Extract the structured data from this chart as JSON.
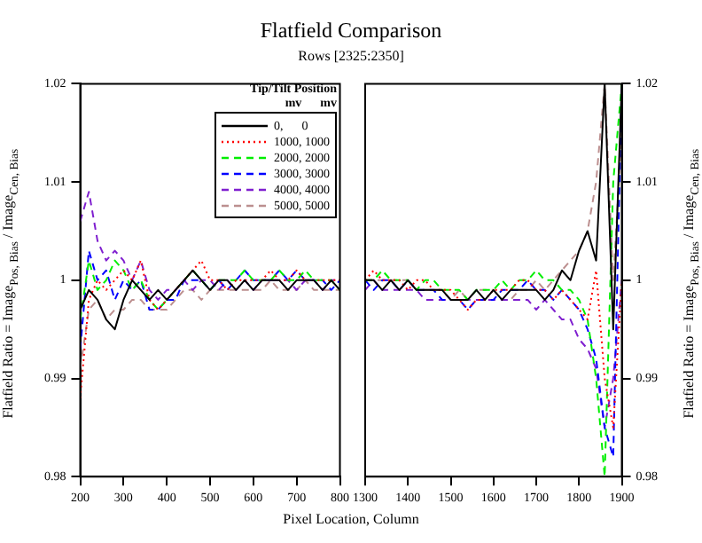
{
  "chart_data": [
    {
      "type": "line",
      "title": "Flatfield Comparison",
      "subtitle": "Rows [2325:2350]",
      "xlabel": "Pixel Location, Column",
      "ylabel": "Flatfield Ratio = Image$_{Pos, Bias}$ / Image$_{Cen, Bias}$",
      "legend": "top right",
      "legend_title": "Tip/Tilt Position\nmv      mv",
      "grid": false,
      "marker": "none",
      "x": [
        200,
        220,
        240,
        260,
        280,
        300,
        320,
        340,
        360,
        380,
        400,
        420,
        440,
        460,
        480,
        500,
        520,
        540,
        560,
        580,
        600,
        620,
        640,
        660,
        680,
        700,
        720,
        740,
        760,
        780,
        800
      ],
      "xlim": [
        200,
        800
      ],
      "xticks": [
        200,
        300,
        400,
        500,
        600,
        700,
        800
      ],
      "ylim": [
        0.98,
        1.02
      ],
      "yticks": [
        0.98,
        0.99,
        1,
        1.01,
        1.02
      ],
      "series": [
        {
          "name": "0,      0",
          "color": "#000000",
          "line_style": "solid",
          "values": [
            0.997,
            0.999,
            0.998,
            0.996,
            0.995,
            0.998,
            1.0,
            0.999,
            0.998,
            0.999,
            0.998,
            0.999,
            1.0,
            1.001,
            1.0,
            0.999,
            1.0,
            1.0,
            0.999,
            1.0,
            0.999,
            1.0,
            1.0,
            1.0,
            0.999,
            1.0,
            1.0,
            1.0,
            0.999,
            1.0,
            0.999
          ]
        },
        {
          "name": "1000, 1000",
          "color": "#ff0000",
          "line_style": "dotted",
          "values": [
            0.988,
            0.998,
            1.0,
            0.999,
            1.0,
            1.001,
            1.0,
            1.002,
            0.998,
            0.997,
            0.998,
            0.999,
            1.0,
            1.001,
            1.002,
            1.0,
            1.0,
            0.999,
            1.0,
            1.0,
            1.0,
            1.0,
            1.001,
            1.0,
            1.0,
            1.001,
            1.0,
            1.0,
            1.0,
            1.0,
            1.0
          ]
        },
        {
          "name": "2000, 2000",
          "color": "#00ee00",
          "line_style": "dashed",
          "values": [
            0.996,
            1.002,
            0.999,
            1.0,
            1.002,
            1.001,
            0.999,
            1.0,
            0.998,
            0.997,
            0.998,
            0.999,
            1.0,
            1.001,
            1.0,
            0.999,
            1.0,
            1.0,
            1.0,
            1.001,
            1.0,
            1.0,
            1.0,
            1.001,
            1.0,
            1.0,
            1.001,
            1.0,
            1.0,
            1.0,
            0.999
          ]
        },
        {
          "name": "3000, 3000",
          "color": "#0000ff",
          "line_style": "dashed",
          "values": [
            0.993,
            1.003,
            1.0,
            1.001,
            0.998,
            1.0,
            0.999,
            1.0,
            0.997,
            0.997,
            0.998,
            0.998,
            1.0,
            1.0,
            1.0,
            0.999,
            1.0,
            0.999,
            1.0,
            1.001,
            1.0,
            1.0,
            1.0,
            1.001,
            1.0,
            1.001,
            1.0,
            1.0,
            1.0,
            0.999,
            1.0
          ]
        },
        {
          "name": "4000, 4000",
          "color": "#7f1fcf",
          "line_style": "dashed",
          "values": [
            1.006,
            1.009,
            1.004,
            1.002,
            1.003,
            1.002,
            1.0,
            1.002,
            0.999,
            0.998,
            0.999,
            0.999,
            1.0,
            0.999,
            1.0,
            1.0,
            0.999,
            1.0,
            0.999,
            1.0,
            0.999,
            1.0,
            1.0,
            1.0,
            1.0,
            0.999,
            1.0,
            1.0,
            0.999,
            1.0,
            1.0
          ]
        },
        {
          "name": "5000, 5000",
          "color": "#bc8f8f",
          "line_style": "dashed",
          "values": [
            0.991,
            0.997,
            0.998,
            0.996,
            0.997,
            0.997,
            0.998,
            0.998,
            0.997,
            0.997,
            0.997,
            0.998,
            0.999,
            0.999,
            0.998,
            0.999,
            0.999,
            0.999,
            0.999,
            0.999,
            0.999,
            0.999,
            1.0,
            0.999,
            0.999,
            0.999,
            1.0,
            0.999,
            0.999,
            0.999,
            0.999
          ]
        }
      ]
    },
    {
      "type": "line",
      "ylabel": "Flatfield Ratio = Image$_{Pos, Bias}$ / Image$_{Cen, Bias}$",
      "grid": false,
      "marker": "none",
      "x": [
        1300,
        1320,
        1340,
        1360,
        1380,
        1400,
        1420,
        1440,
        1460,
        1480,
        1500,
        1520,
        1540,
        1560,
        1580,
        1600,
        1620,
        1640,
        1660,
        1680,
        1700,
        1720,
        1740,
        1760,
        1780,
        1800,
        1820,
        1840,
        1860,
        1880,
        1900
      ],
      "xlim": [
        1300,
        1900
      ],
      "xticks": [
        1300,
        1400,
        1500,
        1600,
        1700,
        1800,
        1900
      ],
      "ylim": [
        0.98,
        1.02
      ],
      "yticks": [
        0.98,
        0.99,
        1,
        1.01,
        1.02
      ],
      "series": [
        {
          "color": "#000000",
          "line_style": "solid",
          "values": [
            1.0,
            1.0,
            0.999,
            1.0,
            0.999,
            1.0,
            0.999,
            0.999,
            0.999,
            0.999,
            0.998,
            0.998,
            0.998,
            0.999,
            0.998,
            0.999,
            0.998,
            0.999,
            0.999,
            0.999,
            0.999,
            0.998,
            0.999,
            1.001,
            1.0,
            1.003,
            1.005,
            1.002,
            1.02,
            0.995,
            1.02
          ]
        },
        {
          "color": "#ff0000",
          "line_style": "dotted",
          "values": [
            1.0,
            1.001,
            1.0,
            1.0,
            1.0,
            0.999,
            1.0,
            1.0,
            0.999,
            0.999,
            0.999,
            0.998,
            0.997,
            0.998,
            0.998,
            0.999,
            0.999,
            0.999,
            1.0,
            1.0,
            0.999,
            0.999,
            0.998,
            0.999,
            0.998,
            0.997,
            0.996,
            1.001,
            0.99,
            0.985,
            1.0
          ]
        },
        {
          "color": "#00ee00",
          "line_style": "dashed",
          "values": [
            1.0,
            1.0,
            1.001,
            1.0,
            1.0,
            1.0,
            0.999,
            1.0,
            1.0,
            0.999,
            0.999,
            0.999,
            0.998,
            0.999,
            0.999,
            0.999,
            1.0,
            0.999,
            1.0,
            1.0,
            1.001,
            1.0,
            1.0,
            0.999,
            0.999,
            0.998,
            0.996,
            0.99,
            0.98,
            1.01,
            1.02
          ]
        },
        {
          "color": "#0000ff",
          "line_style": "dashed",
          "values": [
            1.0,
            0.999,
            1.0,
            1.0,
            0.999,
            1.0,
            0.999,
            0.999,
            0.999,
            0.998,
            0.998,
            0.998,
            0.997,
            0.998,
            0.998,
            0.998,
            0.999,
            0.999,
            0.999,
            1.0,
            0.999,
            0.999,
            0.998,
            0.999,
            0.998,
            0.997,
            0.995,
            0.992,
            0.985,
            0.982,
            1.02
          ]
        },
        {
          "color": "#7f1fcf",
          "line_style": "dashed",
          "values": [
            0.999,
            1.0,
            0.999,
            0.999,
            0.999,
            0.999,
            0.999,
            0.998,
            0.998,
            0.998,
            0.998,
            0.998,
            0.998,
            0.998,
            0.998,
            0.998,
            0.998,
            0.998,
            0.998,
            0.998,
            0.997,
            0.998,
            0.997,
            0.996,
            0.996,
            0.994,
            0.993,
            0.991,
            0.985,
            0.99,
            1.0
          ]
        },
        {
          "color": "#bc8f8f",
          "line_style": "dashed",
          "values": [
            1.0,
            1.0,
            1.0,
            1.0,
            1.0,
            1.0,
            0.999,
            0.999,
            0.999,
            0.999,
            0.998,
            0.999,
            0.998,
            0.999,
            0.999,
            0.999,
            0.998,
            0.998,
            0.999,
            0.999,
            1.0,
            0.999,
            1.0,
            1.001,
            1.002,
            1.003,
            1.005,
            1.01,
            1.02,
            1.0,
            1.015
          ]
        }
      ]
    }
  ]
}
